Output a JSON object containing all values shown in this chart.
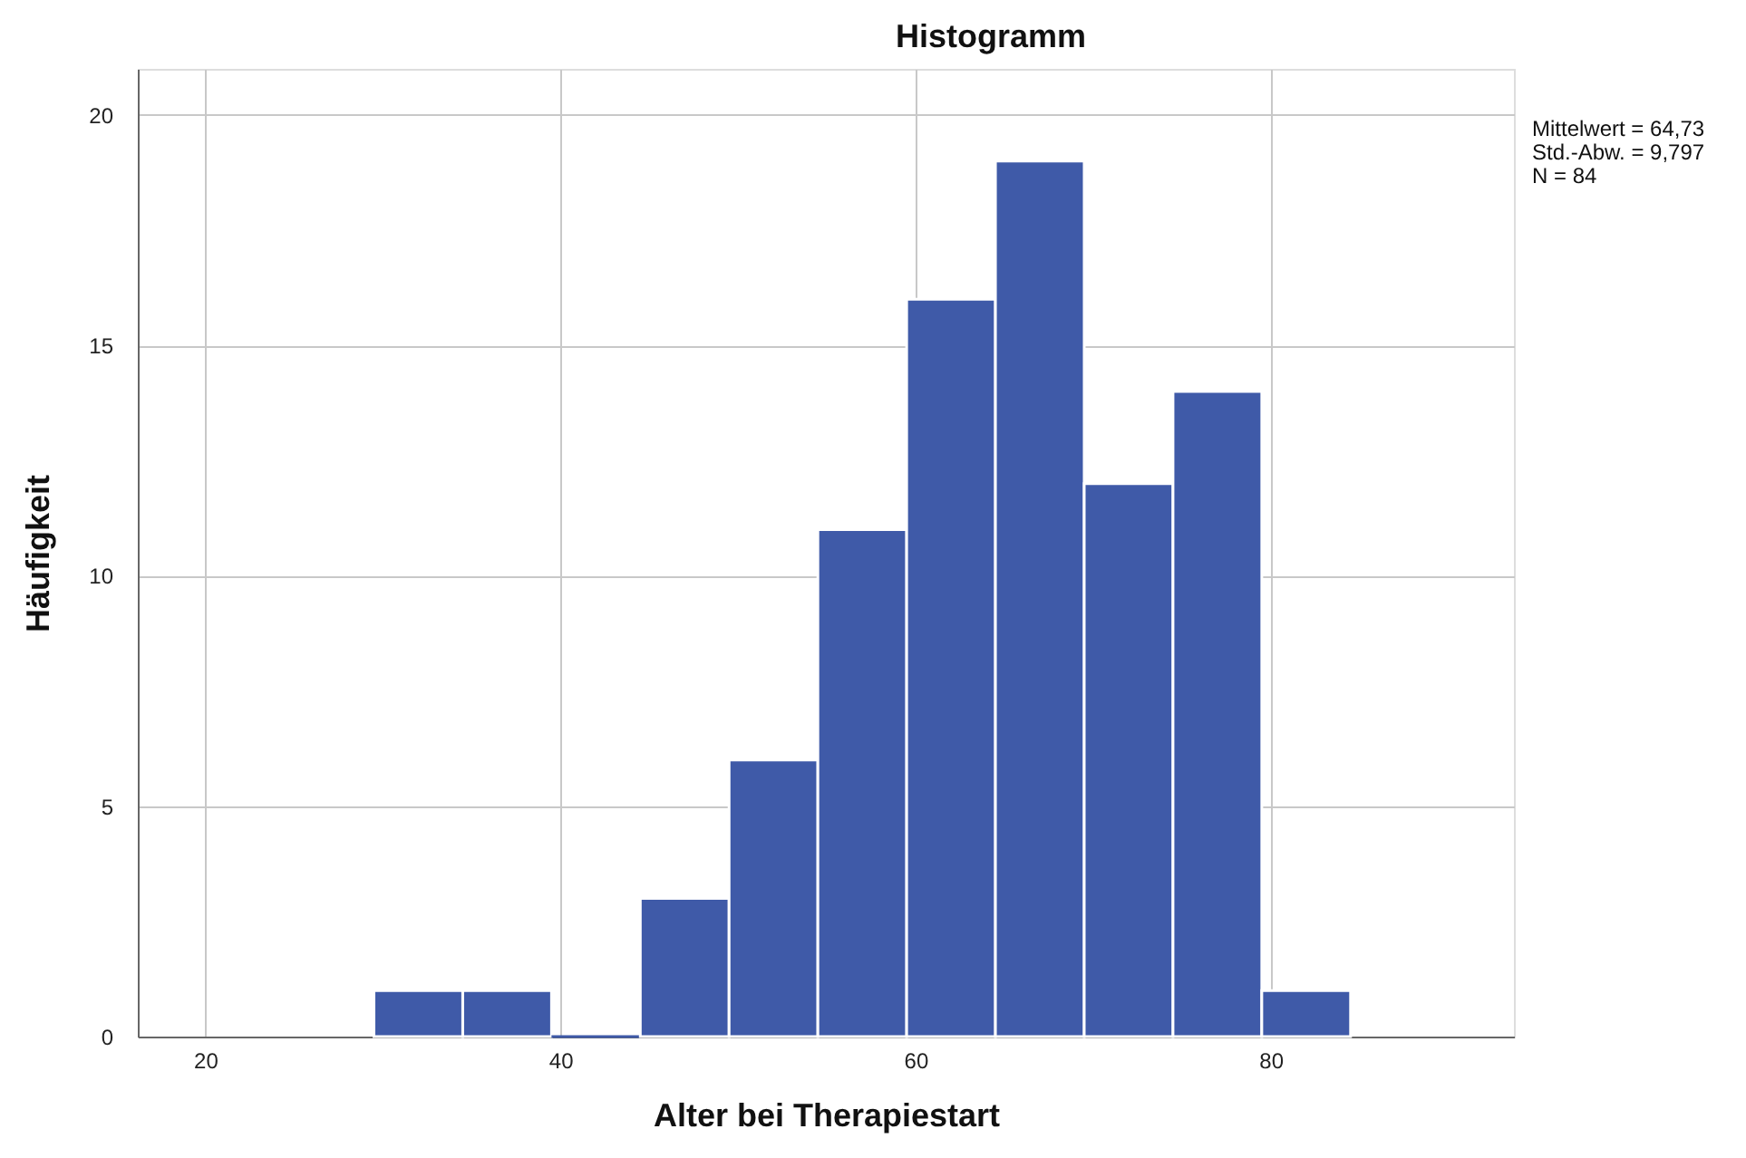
{
  "chart_data": {
    "type": "histogram",
    "title": "Histogramm",
    "xlabel": "Alter bei Therapiestart",
    "ylabel": "Häufigkeit",
    "bins": [
      29.5,
      34.5,
      39.5,
      44.5,
      49.5,
      54.5,
      59.5,
      64.5,
      69.5,
      74.5,
      79.5,
      84.5
    ],
    "values": [
      1,
      1,
      0,
      3,
      6,
      11,
      16,
      19,
      12,
      14,
      1
    ],
    "color": "#3f5aa8",
    "xlim": [
      16.2,
      93.7
    ],
    "xticks": [
      20,
      40,
      60,
      80
    ],
    "ylim": [
      0,
      21
    ],
    "yticks": [
      0,
      5,
      10,
      15,
      20
    ],
    "grid": true,
    "annotations": [
      "Mittelwert = 64,73",
      "Std.-Abw. = 9,797",
      "N = 84"
    ]
  }
}
